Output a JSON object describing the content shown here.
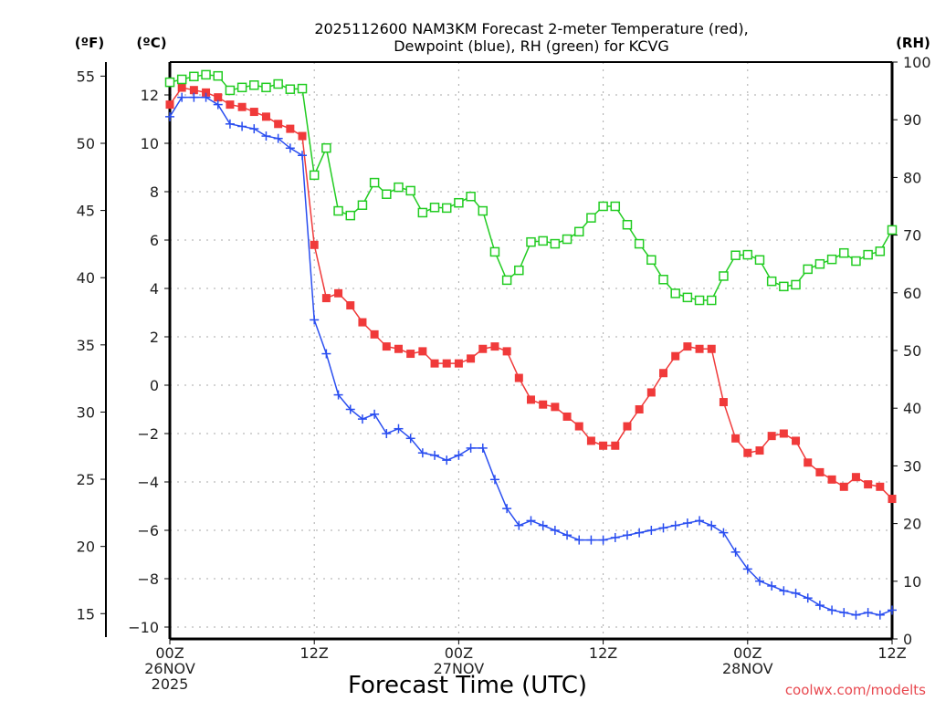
{
  "chart_data": {
    "type": "line",
    "title_lines": [
      "2025112600 NAM3KM Forecast 2-meter Temperature (red),",
      "Dewpoint (blue), RH (green) for KCVG"
    ],
    "xlabel": "Forecast Time (UTC)",
    "credit": "coolwx.com/modelts",
    "unit_labels": {
      "fahrenheit": "(ºF)",
      "celsius": "(ºC)",
      "rh": "(RH)"
    },
    "x_hours_range": [
      0,
      60
    ],
    "x_ticks": [
      {
        "hour": 0,
        "lines": [
          "00Z",
          "26NOV",
          "2025"
        ]
      },
      {
        "hour": 12,
        "lines": [
          "12Z"
        ]
      },
      {
        "hour": 24,
        "lines": [
          "00Z",
          "27NOV"
        ]
      },
      {
        "hour": 36,
        "lines": [
          "12Z"
        ]
      },
      {
        "hour": 48,
        "lines": [
          "00Z",
          "28NOV"
        ]
      },
      {
        "hour": 60,
        "lines": [
          "12Z"
        ]
      }
    ],
    "y_celsius": {
      "range": [
        -10.5,
        13.4
      ],
      "ticks": [
        12,
        10,
        8,
        6,
        4,
        2,
        0,
        -2,
        -4,
        -6,
        -8,
        -10
      ]
    },
    "y_fahrenheit": {
      "ticks": [
        55,
        50,
        45,
        40,
        35,
        30,
        25,
        20,
        15
      ]
    },
    "y_rh": {
      "range": [
        0,
        100
      ],
      "ticks": [
        100,
        90,
        80,
        70,
        60,
        50,
        40,
        30,
        20,
        10,
        0
      ]
    },
    "grid": true,
    "series": [
      {
        "name": "Temperature",
        "axis": "celsius",
        "color": "#f03a3a",
        "marker": "filled-square",
        "values": [
          11.6,
          12.3,
          12.2,
          12.1,
          11.9,
          11.6,
          11.5,
          11.3,
          11.1,
          10.8,
          10.6,
          10.3,
          5.8,
          3.6,
          3.8,
          3.3,
          2.6,
          2.1,
          1.6,
          1.5,
          1.3,
          1.4,
          0.9,
          0.9,
          0.9,
          1.1,
          1.5,
          1.6,
          1.4,
          0.3,
          -0.6,
          -0.8,
          -0.9,
          -1.3,
          -1.7,
          -2.3,
          -2.5,
          -2.5,
          -1.7,
          -1.0,
          -0.3,
          0.5,
          1.2,
          1.6,
          1.5,
          1.5,
          -0.7,
          -2.2,
          -2.8,
          -2.7,
          -2.1,
          -2.0,
          -2.3,
          -3.2,
          -3.6,
          -3.9,
          -4.2,
          -3.8,
          -4.1,
          -4.2,
          -4.7
        ]
      },
      {
        "name": "Dewpoint",
        "axis": "celsius",
        "color": "#2a4ef0",
        "marker": "plus",
        "values": [
          11.1,
          11.9,
          11.9,
          11.9,
          11.6,
          10.8,
          10.7,
          10.6,
          10.3,
          10.2,
          9.8,
          9.5,
          2.7,
          1.3,
          -0.4,
          -1.0,
          -1.4,
          -1.2,
          -2.0,
          -1.8,
          -2.2,
          -2.8,
          -2.9,
          -3.1,
          -2.9,
          -2.6,
          -2.6,
          -3.9,
          -5.1,
          -5.8,
          -5.6,
          -5.8,
          -6.0,
          -6.2,
          -6.4,
          -6.4,
          -6.4,
          -6.3,
          -6.2,
          -6.1,
          -6.0,
          -5.9,
          -5.8,
          -5.7,
          -5.6,
          -5.8,
          -6.1,
          -6.9,
          -7.6,
          -8.1,
          -8.3,
          -8.5,
          -8.6,
          -8.8,
          -9.1,
          -9.3,
          -9.4,
          -9.5,
          -9.4,
          -9.5,
          -9.3
        ]
      },
      {
        "name": "RH",
        "axis": "rh",
        "color": "#22cc22",
        "marker": "open-square",
        "values": [
          96.5,
          97,
          97.5,
          97.8,
          97.6,
          95.1,
          95.6,
          96,
          95.6,
          96.2,
          95.3,
          95.4,
          80.4,
          85.1,
          74.2,
          73.4,
          75.2,
          79.1,
          77.1,
          78.3,
          77.7,
          73.9,
          74.8,
          74.7,
          75.6,
          76.7,
          74.2,
          67.1,
          62.2,
          63.9,
          68.8,
          69,
          68.5,
          69.3,
          70.6,
          73,
          75,
          75,
          71.8,
          68.5,
          65.7,
          62.3,
          59.9,
          59.2,
          58.7,
          58.7,
          62.9,
          66.5,
          66.6,
          65.7,
          62,
          61.1,
          61.4,
          64.1,
          65,
          65.8,
          66.9,
          65.5,
          66.6,
          67.2,
          70.9
        ]
      }
    ]
  }
}
